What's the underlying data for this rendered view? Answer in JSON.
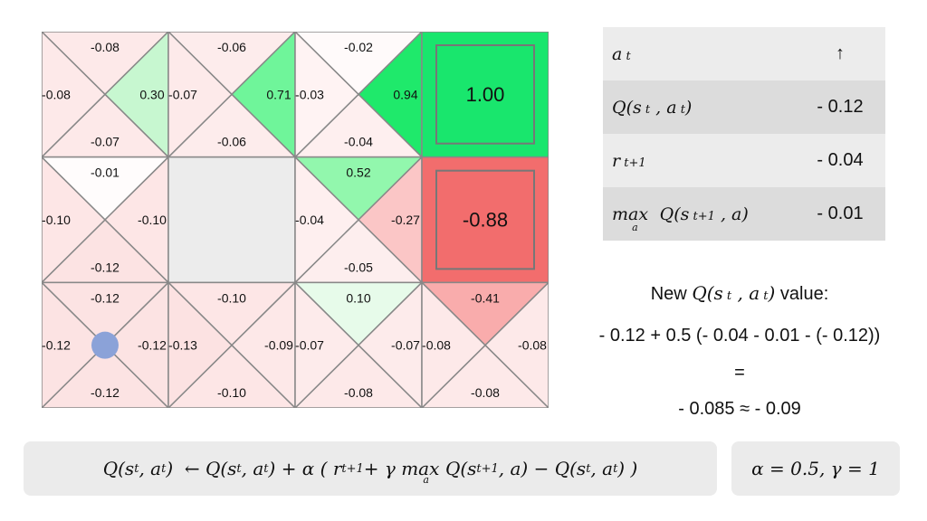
{
  "grid": {
    "cells": [
      {
        "row": 0,
        "col": 0,
        "type": "q",
        "top": "-0.08",
        "left": "-0.08",
        "right": "0.30",
        "bottom": "-0.07",
        "colors": {
          "top": "#fde9e9",
          "left": "#fde9e9",
          "right": "#c7f7d0",
          "bottom": "#fde9e9"
        }
      },
      {
        "row": 0,
        "col": 1,
        "type": "q",
        "top": "-0.06",
        "left": "-0.07",
        "right": "0.71",
        "bottom": "-0.06",
        "colors": {
          "top": "#fdecec",
          "left": "#fdeaea",
          "right": "#6ff59a",
          "bottom": "#fdecec"
        }
      },
      {
        "row": 0,
        "col": 2,
        "type": "q",
        "top": "-0.02",
        "left": "-0.03",
        "right": "0.94",
        "bottom": "-0.04",
        "colors": {
          "top": "#fffafa",
          "left": "#fff3f3",
          "right": "#1fe96b",
          "bottom": "#feefef"
        }
      },
      {
        "row": 0,
        "col": 3,
        "type": "terminal",
        "value": "1.00",
        "color": "#19e66d"
      },
      {
        "row": 1,
        "col": 0,
        "type": "q",
        "top": "-0.01",
        "left": "-0.10",
        "right": "-0.10",
        "bottom": "-0.12",
        "colors": {
          "top": "#fffcfc",
          "left": "#fde6e6",
          "right": "#fde6e6",
          "bottom": "#fce3e3"
        }
      },
      {
        "row": 1,
        "col": 1,
        "type": "wall",
        "color": "#ececec"
      },
      {
        "row": 1,
        "col": 2,
        "type": "q",
        "top": "0.52",
        "left": "-0.04",
        "right": "-0.27",
        "bottom": "-0.05",
        "colors": {
          "top": "#92f7ad",
          "left": "#feefef",
          "right": "#fbc6c6",
          "bottom": "#fdeeee"
        }
      },
      {
        "row": 1,
        "col": 3,
        "type": "terminal",
        "value": "-0.88",
        "color": "#f26d6d"
      },
      {
        "row": 2,
        "col": 0,
        "type": "q",
        "top": "-0.12",
        "left": "-0.12",
        "right": "-0.12",
        "bottom": "-0.12",
        "colors": {
          "top": "#fce3e3",
          "left": "#fce3e3",
          "right": "#fce3e3",
          "bottom": "#fce3e3"
        },
        "agent": true
      },
      {
        "row": 2,
        "col": 1,
        "type": "q",
        "top": "-0.10",
        "left": "-0.13",
        "right": "-0.09",
        "bottom": "-0.10",
        "colors": {
          "top": "#fde6e6",
          "left": "#fce2e2",
          "right": "#fde8e8",
          "bottom": "#fde6e6"
        }
      },
      {
        "row": 2,
        "col": 2,
        "type": "q",
        "top": "0.10",
        "left": "-0.07",
        "right": "-0.07",
        "bottom": "-0.08",
        "colors": {
          "top": "#e7fbea",
          "left": "#fdebeb",
          "right": "#fdebeb",
          "bottom": "#fde9e9"
        }
      },
      {
        "row": 2,
        "col": 3,
        "type": "q",
        "top": "-0.41",
        "left": "-0.08",
        "right": "-0.08",
        "bottom": "-0.08",
        "colors": {
          "top": "#f9acac",
          "left": "#fde9e9",
          "right": "#fde9e9",
          "bottom": "#fde9e9"
        }
      }
    ],
    "agent_color": "#8ba2d8",
    "line_color": "#888888"
  },
  "table": {
    "rows": [
      {
        "label": "a_t",
        "value": "↑"
      },
      {
        "label": "Q(s_t, a_t)",
        "value": "- 0.12"
      },
      {
        "label": "r_t+1",
        "value": "- 0.04"
      },
      {
        "label": "max_a Q(s_t+1, a)",
        "value": "- 0.01"
      }
    ]
  },
  "calc": {
    "header_pre": "New",
    "header_post": "value:",
    "expr": "- 0.12 + 0.5 (- 0.04 - 0.01 - (- 0.12))",
    "equals": "=",
    "result": "- 0.085 ≈ - 0.09"
  },
  "formula": "Q(s_t, a_t) ← Q(s_t, a_t) + α ( r_t+1 + γ max_a Q(s_t+1, a) − Q(s_t, a_t) )",
  "params": "α = 0.5, γ = 1"
}
